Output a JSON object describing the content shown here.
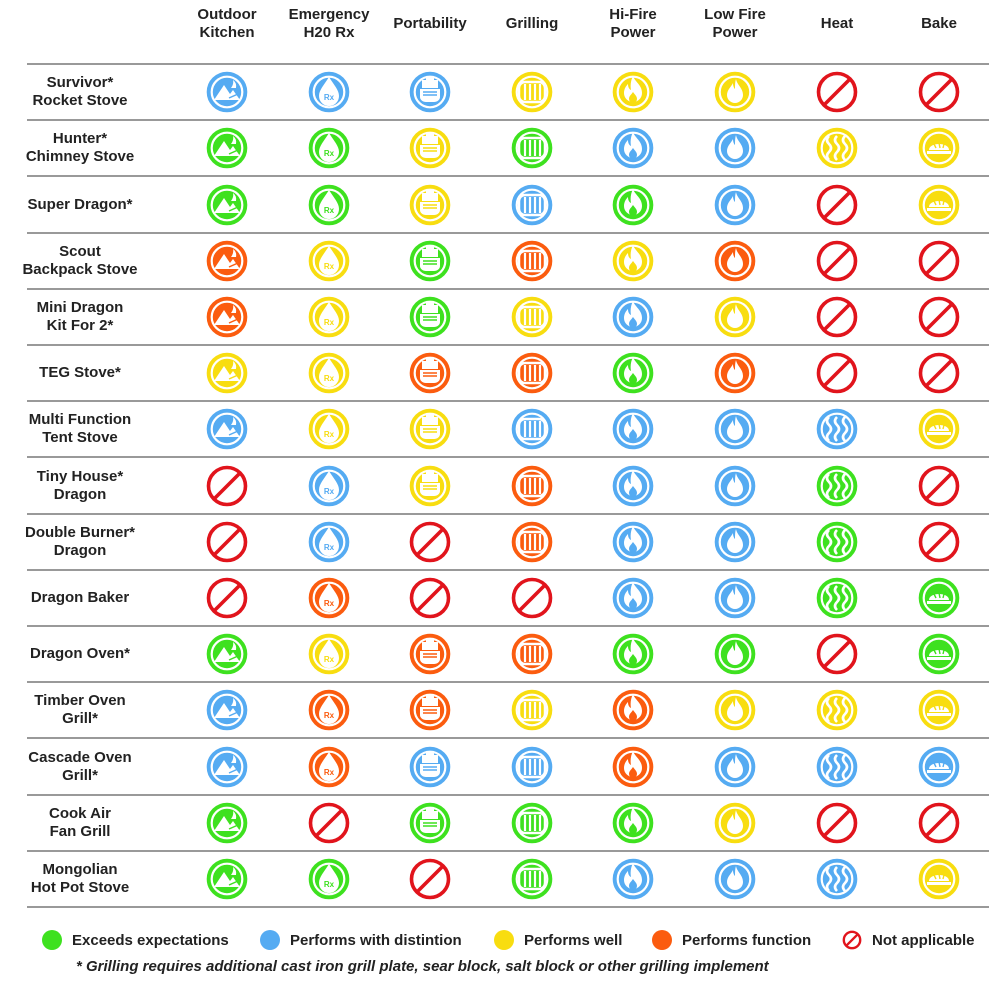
{
  "colors": {
    "G": "#3ee11f",
    "B": "#55abf2",
    "Y": "#f8dd10",
    "O": "#fb5c0f",
    "N": "#e1141c"
  },
  "columns": [
    [
      "Outdoor",
      "Kitchen"
    ],
    [
      "Emergency",
      "H20 Rx"
    ],
    [
      "Portability"
    ],
    [
      "Grilling"
    ],
    [
      "Hi-Fire",
      "Power"
    ],
    [
      "Low Fire",
      "Power"
    ],
    [
      "Heat"
    ],
    [
      "Bake"
    ]
  ],
  "column_icons": [
    "mountain-campfire-icon",
    "water-drop-rx-icon",
    "hand-carry-icon",
    "grill-grate-icon",
    "flame-icon",
    "small-flame-icon",
    "heat-waves-icon",
    "bread-loaf-icon"
  ],
  "rows": [
    {
      "name": [
        "Survivor*",
        "Rocket Stove"
      ],
      "ratings": [
        "B",
        "B",
        "B",
        "Y",
        "Y",
        "Y",
        "N",
        "N"
      ]
    },
    {
      "name": [
        "Hunter*",
        "Chimney Stove"
      ],
      "ratings": [
        "G",
        "G",
        "Y",
        "G",
        "B",
        "B",
        "Y",
        "Y"
      ]
    },
    {
      "name": [
        "Super Dragon*"
      ],
      "ratings": [
        "G",
        "G",
        "Y",
        "B",
        "G",
        "B",
        "N",
        "Y"
      ]
    },
    {
      "name": [
        "Scout",
        "Backpack Stove"
      ],
      "ratings": [
        "O",
        "Y",
        "G",
        "O",
        "Y",
        "O",
        "N",
        "N"
      ]
    },
    {
      "name": [
        "Mini Dragon",
        "Kit For 2*"
      ],
      "ratings": [
        "O",
        "Y",
        "G",
        "Y",
        "B",
        "Y",
        "N",
        "N"
      ]
    },
    {
      "name": [
        "TEG Stove*"
      ],
      "ratings": [
        "Y",
        "Y",
        "O",
        "O",
        "G",
        "O",
        "N",
        "N"
      ]
    },
    {
      "name": [
        "Multi Function",
        "Tent Stove"
      ],
      "ratings": [
        "B",
        "Y",
        "Y",
        "B",
        "B",
        "B",
        "B",
        "Y"
      ]
    },
    {
      "name": [
        "Tiny House*",
        "Dragon"
      ],
      "ratings": [
        "N",
        "B",
        "Y",
        "O",
        "B",
        "B",
        "G",
        "N"
      ]
    },
    {
      "name": [
        "Double Burner*",
        "Dragon"
      ],
      "ratings": [
        "N",
        "B",
        "N",
        "O",
        "B",
        "B",
        "G",
        "N"
      ]
    },
    {
      "name": [
        "Dragon Baker"
      ],
      "ratings": [
        "N",
        "O",
        "N",
        "N",
        "B",
        "B",
        "G",
        "G"
      ]
    },
    {
      "name": [
        "Dragon Oven*"
      ],
      "ratings": [
        "G",
        "Y",
        "O",
        "O",
        "G",
        "G",
        "N",
        "G"
      ]
    },
    {
      "name": [
        "Timber Oven",
        "Grill*"
      ],
      "ratings": [
        "B",
        "O",
        "O",
        "Y",
        "O",
        "Y",
        "Y",
        "Y"
      ]
    },
    {
      "name": [
        "Cascade Oven",
        "Grill*"
      ],
      "ratings": [
        "B",
        "O",
        "B",
        "B",
        "O",
        "B",
        "B",
        "B"
      ]
    },
    {
      "name": [
        "Cook Air",
        "Fan Grill"
      ],
      "ratings": [
        "G",
        "N",
        "G",
        "G",
        "G",
        "Y",
        "N",
        "N"
      ]
    },
    {
      "name": [
        "Mongolian",
        "Hot Pot Stove"
      ],
      "ratings": [
        "G",
        "G",
        "N",
        "G",
        "B",
        "B",
        "B",
        "Y"
      ]
    }
  ],
  "legend": [
    {
      "key": "G",
      "label": "Exceeds expectations"
    },
    {
      "key": "B",
      "label": "Performs with distintion"
    },
    {
      "key": "Y",
      "label": "Performs well"
    },
    {
      "key": "O",
      "label": "Performs function"
    },
    {
      "key": "N",
      "label": "Not applicable"
    }
  ],
  "footnote": "* Grilling requires additional cast iron grill plate, sear block, salt block or other grilling implement"
}
